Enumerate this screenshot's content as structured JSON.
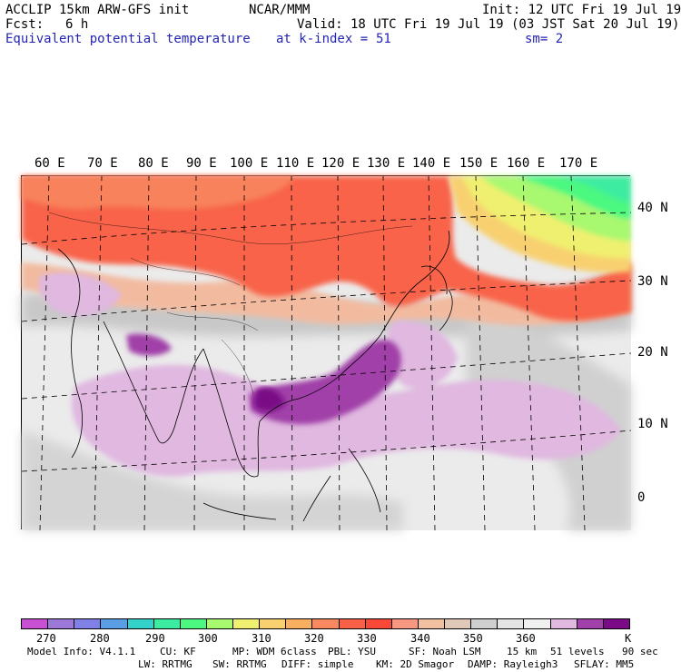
{
  "header": {
    "model": "ACCLIP 15km ARW-GFS init",
    "center": "NCAR/MMM",
    "init": "Init: 12 UTC Fri 19 Jul 19",
    "fcst_label": "Fcst:",
    "fcst_value": "6 h",
    "valid": "Valid: 18 UTC Fri 19 Jul 19 (03 JST Sat 20 Jul 19)",
    "field": "Equivalent potential temperature",
    "level": "at k-index =",
    "level_value": "51",
    "smooth": "sm= 2"
  },
  "map": {
    "lon_labels": [
      "60 E",
      "70 E",
      "80 E",
      "90 E",
      "100 E",
      "110 E",
      "120 E",
      "130 E",
      "140 E",
      "150 E",
      "160 E",
      "170 E"
    ],
    "lat_labels": [
      "40 N",
      "30 N",
      "20 N",
      "10 N",
      "0"
    ]
  },
  "colorbar": {
    "colors": [
      "#c850d2",
      "#9c78d8",
      "#8080e6",
      "#5a9ee6",
      "#32d2c8",
      "#3ceca0",
      "#4cf880",
      "#a8f870",
      "#f0f070",
      "#f8d070",
      "#f8b060",
      "#f88860",
      "#f86048",
      "#f84838",
      "#f89880",
      "#f0c0a0",
      "#e0c8b8",
      "#cfcfcf",
      "#e4e4e4",
      "#f0f0f0",
      "#e0b8e0",
      "#a040a8",
      "#7a0a86"
    ],
    "labels": [
      "270",
      "280",
      "290",
      "300",
      "310",
      "320",
      "330",
      "340",
      "350",
      "360"
    ],
    "unit": "K"
  },
  "footer": {
    "line1": [
      "Model Info: V4.1.1",
      "CU: KF",
      "MP: WDM 6class",
      "PBL: YSU",
      "SF: Noah LSM",
      "15 km",
      "51 levels",
      "90 sec"
    ],
    "line2": [
      "LW: RRTMG",
      "SW: RRTMG",
      "DIFF: simple",
      "KM: 2D Smagor",
      "DAMP: Rayleigh3",
      "SFLAY: MM5"
    ]
  }
}
